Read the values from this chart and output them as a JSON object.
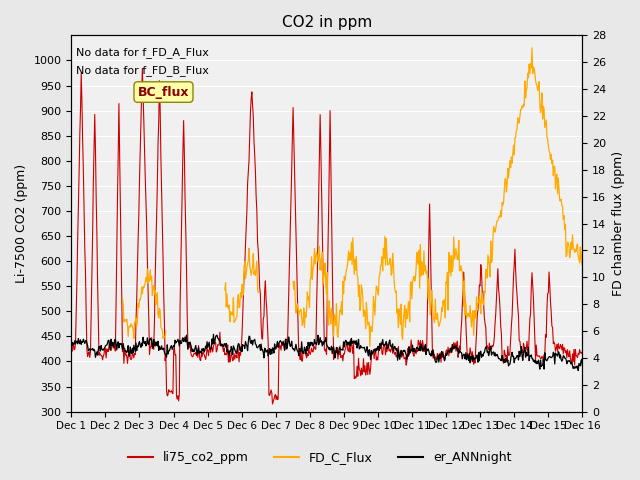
{
  "title": "CO2 in ppm",
  "ylabel_left": "Li-7500 CO2 (ppm)",
  "ylabel_right": "FD chamber flux (ppm)",
  "annotation_lines": [
    "No data for f_FD_A_Flux",
    "No data for f_FD_B_Flux"
  ],
  "bc_flux_label": "BC_flux",
  "legend_entries": [
    "li75_co2_ppm",
    "FD_C_Flux",
    "er_ANNnight"
  ],
  "line_colors": [
    "#cc0000",
    "#ffaa00",
    "#000000"
  ],
  "ylim_left": [
    300,
    1050
  ],
  "ylim_right": [
    0,
    28
  ],
  "yticks_left": [
    300,
    350,
    400,
    450,
    500,
    550,
    600,
    650,
    700,
    750,
    800,
    850,
    900,
    950,
    1000
  ],
  "yticks_right": [
    0,
    2,
    4,
    6,
    8,
    10,
    12,
    14,
    16,
    18,
    20,
    22,
    24,
    26,
    28
  ],
  "xtick_labels": [
    "Dec 1",
    "Dec 2",
    "Dec 3",
    "Dec 4",
    "Dec 5",
    "Dec 6",
    "Dec 7",
    "Dec 8",
    "Dec 9",
    "Dec 10",
    "Dec 11",
    "Dec 12",
    "Dec 13",
    "Dec 14",
    "Dec 15",
    "Dec 16"
  ],
  "bg_color": "#e8e8e8",
  "plot_bg_color": "#f0f0f0"
}
